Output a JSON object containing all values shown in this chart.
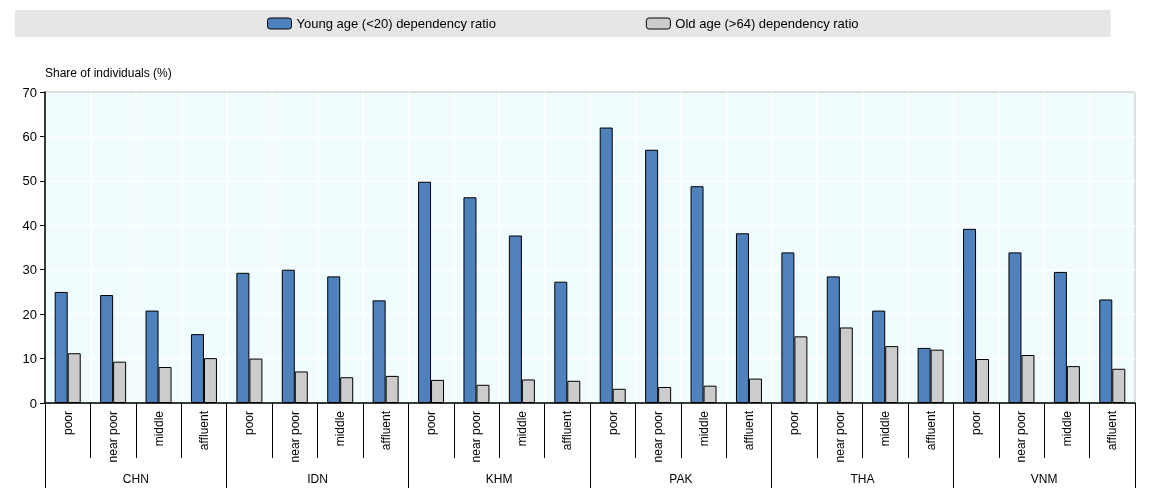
{
  "chart_data": {
    "type": "bar",
    "ylabel": "Share of individuals (%)",
    "categories": [
      "poor",
      "near poor",
      "middle",
      "affluent",
      "poor",
      "near poor",
      "middle",
      "affluent",
      "poor",
      "near poor",
      "middle",
      "affluent",
      "poor",
      "near poor",
      "middle",
      "affluent",
      "poor",
      "near poor",
      "middle",
      "affluent",
      "poor",
      "near poor",
      "middle",
      "affluent"
    ],
    "annotations": [
      "CHN",
      "IDN",
      "KHM",
      "PAK",
      "THA",
      "VNM"
    ],
    "series": [
      {
        "name": "Young age (<20) dependency ratio",
        "color": "#4f81bd",
        "values": [
          25,
          24.3,
          20.8,
          15.5,
          29.3,
          30,
          28.5,
          23.1,
          49.8,
          46.3,
          37.7,
          27.3,
          62,
          57,
          48.8,
          38.2,
          33.9,
          28.5,
          20.8,
          12.4,
          39.2,
          33.9,
          29.5,
          23.3
        ]
      },
      {
        "name": "Old age (>64) dependency ratio",
        "color": "#cccccc",
        "values": [
          11.2,
          9.3,
          8.1,
          10.1,
          10,
          7.1,
          5.8,
          6.1,
          5.2,
          4.1,
          5.3,
          5,
          3.2,
          3.6,
          3.9,
          5.5,
          15,
          17,
          12.8,
          12,
          9.9,
          10.8,
          8.3,
          7.7
        ]
      }
    ],
    "ylim": [
      0,
      70
    ],
    "yticks": [
      0,
      10,
      20,
      30,
      40,
      50,
      60,
      70
    ],
    "grid": true,
    "legend": "top"
  }
}
